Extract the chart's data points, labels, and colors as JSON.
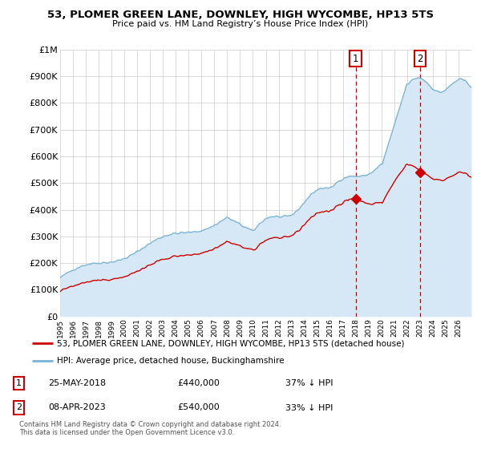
{
  "title": "53, PLOMER GREEN LANE, DOWNLEY, HIGH WYCOMBE, HP13 5TS",
  "subtitle": "Price paid vs. HM Land Registry’s House Price Index (HPI)",
  "ylim": [
    0,
    1000000
  ],
  "yticks": [
    0,
    100000,
    200000,
    300000,
    400000,
    500000,
    600000,
    700000,
    800000,
    900000,
    1000000
  ],
  "ytick_labels": [
    "£0",
    "£100K",
    "£200K",
    "£300K",
    "£400K",
    "£500K",
    "£600K",
    "£700K",
    "£800K",
    "£900K",
    "£1M"
  ],
  "hpi_color": "#7ab3d4",
  "price_color": "#cc0000",
  "vline_color": "#cc0000",
  "sale1_idx": 276,
  "sale2_idx": 336,
  "sale1_price": 440000,
  "sale2_price": 540000,
  "sale1_date": "25-MAY-2018",
  "sale2_date": "08-APR-2023",
  "sale1_hpi_pct": "37% ↓ HPI",
  "sale2_hpi_pct": "33% ↓ HPI",
  "legend_line1": "53, PLOMER GREEN LANE, DOWNLEY, HIGH WYCOMBE, HP13 5TS (detached house)",
  "legend_line2": "HPI: Average price, detached house, Buckinghamshire",
  "footnote1": "Contains HM Land Registry data © Crown copyright and database right 2024.",
  "footnote2": "This data is licensed under the Open Government Licence v3.0.",
  "hpi_fill_color": "#d6e8f5",
  "background_color": "#ffffff",
  "grid_color": "#cccccc",
  "xtick_years": [
    1995,
    1996,
    1997,
    1998,
    1999,
    2000,
    2001,
    2002,
    2003,
    2004,
    2005,
    2006,
    2007,
    2008,
    2009,
    2010,
    2011,
    2012,
    2013,
    2014,
    2015,
    2016,
    2017,
    2018,
    2019,
    2020,
    2021,
    2022,
    2023,
    2024,
    2025,
    2026
  ]
}
